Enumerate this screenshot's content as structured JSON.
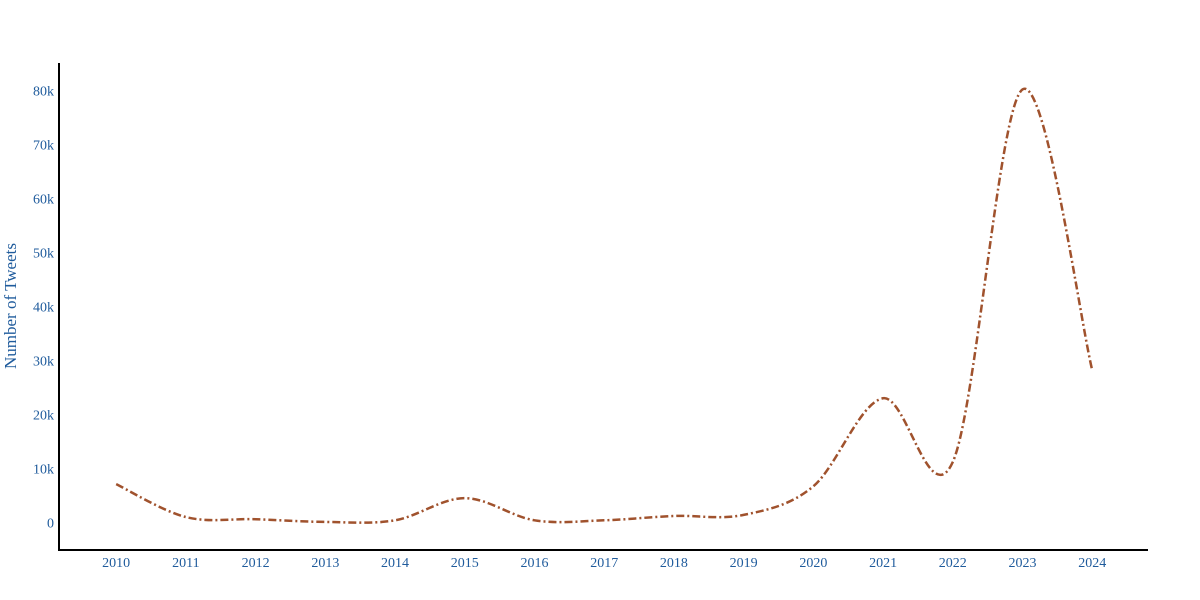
{
  "chart_data": {
    "type": "line",
    "y_label": "Number of Tweets",
    "x": [
      2010,
      2011,
      2012,
      2013,
      2014,
      2015,
      2016,
      2017,
      2018,
      2019,
      2020,
      2021,
      2022,
      2023,
      2024
    ],
    "series": [
      {
        "color": "#a0522d",
        "values": [
          7400,
          1300,
          900,
          400,
          700,
          4800,
          700,
          700,
          1500,
          1700,
          7000,
          23300,
          11500,
          80500,
          28500
        ]
      }
    ],
    "xlim": [
      2009.18,
      2024.8
    ],
    "xticks": [
      2010,
      2011,
      2012,
      2013,
      2014,
      2015,
      2016,
      2017,
      2018,
      2019,
      2020,
      2021,
      2022,
      2023,
      2024
    ],
    "ylim": [
      -4800,
      85400
    ],
    "yticks": [
      0,
      {
        "value": 10000,
        "label": "10k"
      },
      {
        "value": 20000,
        "label": "20k"
      },
      {
        "value": 30000,
        "label": "30k"
      },
      {
        "value": 40000,
        "label": "40k"
      },
      {
        "value": 50000,
        "label": "50k"
      },
      {
        "value": 60000,
        "label": "60k"
      },
      {
        "value": 70000,
        "label": "70k"
      },
      {
        "value": 80000,
        "label": "80k"
      }
    ],
    "smooth": true,
    "dash": "dashdot"
  }
}
